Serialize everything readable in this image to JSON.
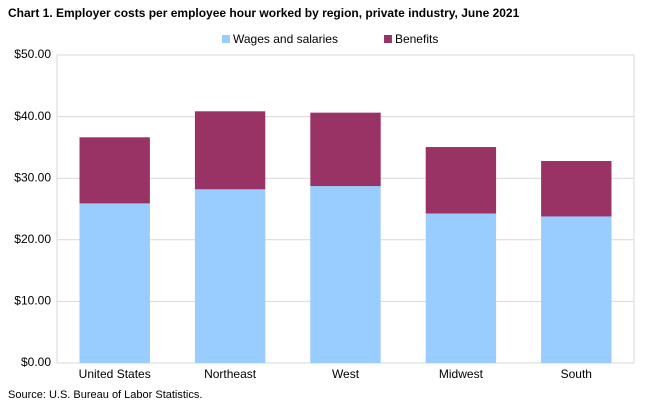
{
  "chart_data": {
    "type": "stacked_bar",
    "title": "Chart 1. Employer costs per employee hour worked by region, private industry, June 2021",
    "source": "Source: U.S. Bureau of Labor Statistics.",
    "categories": [
      "United States",
      "Northeast",
      "West",
      "Midwest",
      "South"
    ],
    "series": [
      {
        "name": "Wages and salaries",
        "color": "#99ccff",
        "values": [
          25.91,
          28.2,
          28.72,
          24.27,
          23.79
        ]
      },
      {
        "name": "Benefits",
        "color": "#993366",
        "values": [
          10.73,
          12.66,
          11.92,
          10.79,
          9.0
        ]
      }
    ],
    "ylim": [
      0,
      50
    ],
    "yticks": [
      {
        "value": 0,
        "label": "$0.00"
      },
      {
        "value": 10,
        "label": "$10.00"
      },
      {
        "value": 20,
        "label": "$20.00"
      },
      {
        "value": 30,
        "label": "$30.00"
      },
      {
        "value": 40,
        "label": "$40.00"
      },
      {
        "value": 50,
        "label": "$50.00"
      }
    ],
    "grid": true,
    "legend": "top"
  }
}
